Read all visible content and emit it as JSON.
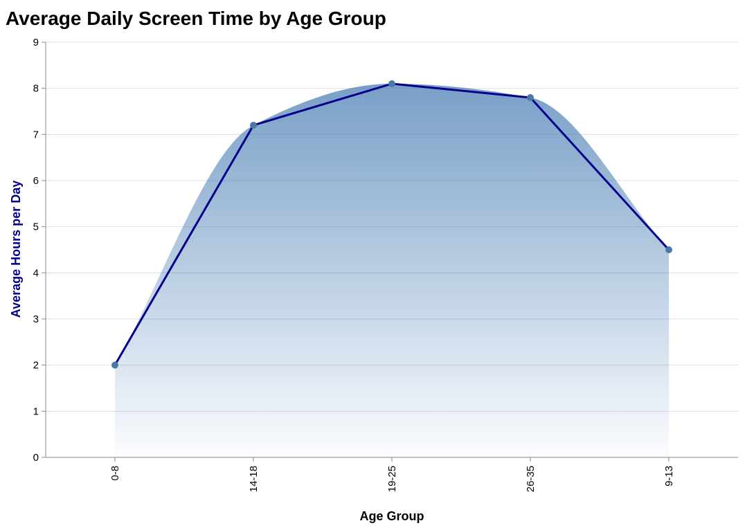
{
  "chart_data": {
    "type": "area",
    "title": "Average Daily Screen Time by Age Group",
    "xlabel": "Age Group",
    "ylabel": "Average Hours per Day",
    "categories": [
      "0-8",
      "14-18",
      "19-25",
      "26-35",
      "9-13"
    ],
    "values": [
      2.0,
      7.2,
      8.1,
      7.8,
      4.5
    ],
    "ylim": [
      0,
      9
    ],
    "yticks": [
      "0",
      "1",
      "2",
      "3",
      "4",
      "5",
      "6",
      "7",
      "8",
      "9"
    ],
    "grid": true,
    "colors": {
      "area_top": "#4b7fb5",
      "line": "#00008b",
      "point": "#4c78a8",
      "ylabel": "#00008b",
      "grid": "#dddddd",
      "axis": "#888888"
    }
  }
}
